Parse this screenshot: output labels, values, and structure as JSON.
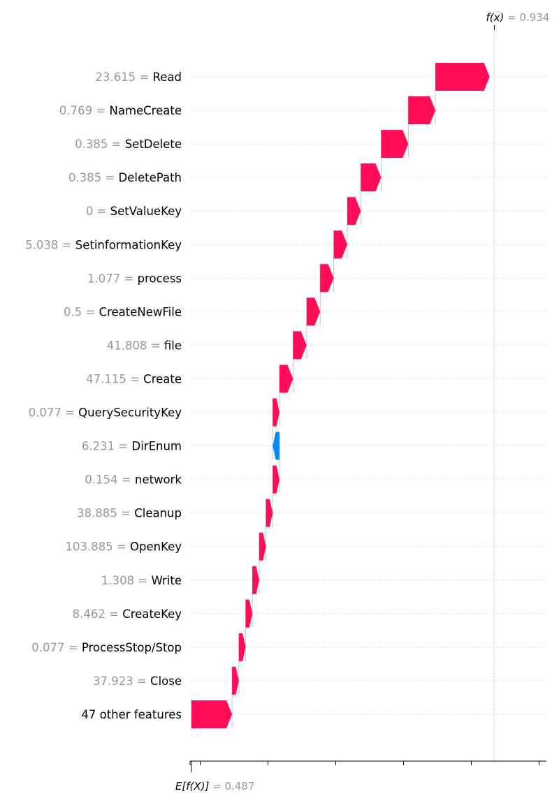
{
  "chart_data": {
    "type": "waterfall",
    "title": "",
    "colors": {
      "positive": "#ff0d57",
      "negative": "#008bfb",
      "grid": "#cccccc",
      "muted": "#999999"
    },
    "base_value": {
      "prefix": "E[f(X)]",
      "label": "0.487",
      "value": 0.487
    },
    "final_value": {
      "prefix": "f(x)",
      "label": "0.934",
      "value": 0.934
    },
    "x_axis": {
      "ticks": [
        0.5,
        0.6,
        0.7,
        0.8,
        0.9,
        1.0
      ],
      "tick_labels": [
        "0.5",
        "0.6",
        "0.7",
        "0.8",
        "0.9",
        "1.0"
      ],
      "range": [
        0.487,
        1.0
      ]
    },
    "features": [
      {
        "value": "23.615",
        "name": "Read",
        "contribution": 0.08,
        "label": "+0.08"
      },
      {
        "value": "0.769",
        "name": "NameCreate",
        "contribution": 0.04,
        "label": "+0.04"
      },
      {
        "value": "0.385",
        "name": "SetDelete",
        "contribution": 0.04,
        "label": "+0.04"
      },
      {
        "value": "0.385",
        "name": "DeletePath",
        "contribution": 0.03,
        "label": "+0.03"
      },
      {
        "value": "0",
        "name": "SetValueKey",
        "contribution": 0.02,
        "label": "+0.02"
      },
      {
        "value": "5.038",
        "name": "SetinformationKey",
        "contribution": 0.02,
        "label": "+0.02"
      },
      {
        "value": "1.077",
        "name": "process",
        "contribution": 0.02,
        "label": "+0.02"
      },
      {
        "value": "0.5",
        "name": "CreateNewFile",
        "contribution": 0.02,
        "label": "+0.02"
      },
      {
        "value": "41.808",
        "name": "file",
        "contribution": 0.02,
        "label": "+0.02"
      },
      {
        "value": "47.115",
        "name": "Create",
        "contribution": 0.02,
        "label": "+0.02"
      },
      {
        "value": "0.077",
        "name": "QuerySecurityKey",
        "contribution": 0.01,
        "label": "+0.01"
      },
      {
        "value": "6.231",
        "name": "DirEnum",
        "contribution": -0.01,
        "label": "−0.01"
      },
      {
        "value": "0.154",
        "name": "network",
        "contribution": 0.01,
        "label": "+0.01"
      },
      {
        "value": "38.885",
        "name": "Cleanup",
        "contribution": 0.01,
        "label": "+0.01"
      },
      {
        "value": "103.885",
        "name": "OpenKey",
        "contribution": 0.01,
        "label": "+0.01"
      },
      {
        "value": "1.308",
        "name": "Write",
        "contribution": 0.01,
        "label": "+0.01"
      },
      {
        "value": "8.462",
        "name": "CreateKey",
        "contribution": 0.01,
        "label": "+0.01"
      },
      {
        "value": "0.077",
        "name": "ProcessStop/Stop",
        "contribution": 0.01,
        "label": "+0.01"
      },
      {
        "value": "37.923",
        "name": "Close",
        "contribution": 0.01,
        "label": "+0.01"
      },
      {
        "value": "",
        "name": "47 other features",
        "contribution": 0.06,
        "label": "+0.06"
      }
    ]
  }
}
